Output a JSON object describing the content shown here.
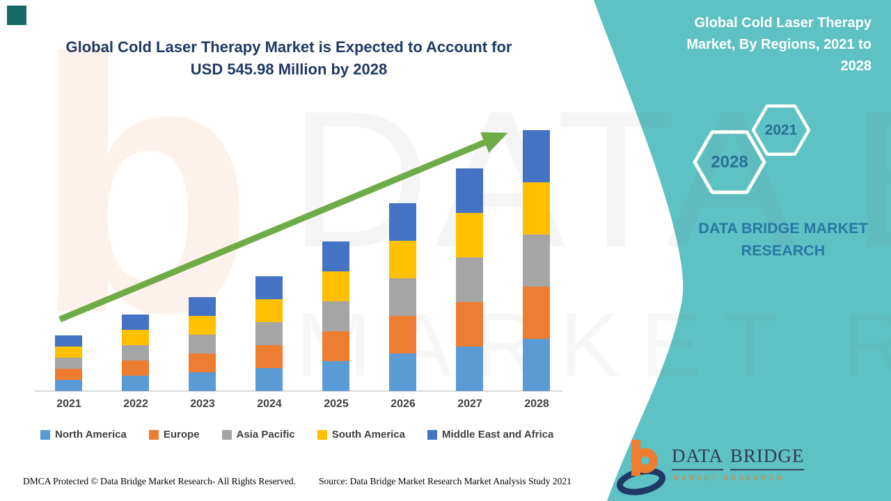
{
  "colors": {
    "teal_panel": "#5EC1C3",
    "title_navy": "#1F3864",
    "brand_blue": "#2878A4",
    "hex_year_blue": "#2B7095",
    "arrow_green": "#6FAC47",
    "axis_gray": "#D9D9D9",
    "label_gray": "#404040",
    "logo_orange": "#ED7D31",
    "logo_navy": "#203864",
    "corner_square": "#156A64"
  },
  "header": {
    "title": "Global Cold Laser Therapy Market is Expected to Account for USD 545.98 Million by 2028"
  },
  "side_panel": {
    "title": "Global Cold Laser Therapy Market, By Regions, 2021 to 2028",
    "hexagon_back_label": "2021",
    "hexagon_front_label": "2028",
    "brand_text": "DATA BRIDGE MARKET RESEARCH",
    "logo_name_word1": "DATA",
    "logo_name_word2": "BRIDGE",
    "logo_subtitle": "MARKET RESEARCH"
  },
  "watermarks": {
    "big_text": "DATA BRIDGE",
    "small_text": "MARKET RESEARCH",
    "letter_b": "b"
  },
  "chart_data": {
    "type": "bar",
    "stacked": true,
    "unit": "USD Million",
    "title": "Global Cold Laser Therapy Market, By Regions, 2021 to 2028",
    "categories": [
      "2021",
      "2022",
      "2023",
      "2024",
      "2025",
      "2026",
      "2027",
      "2028"
    ],
    "series": [
      {
        "name": "North America",
        "color": "#5B9BD5",
        "values": [
          23.9,
          31.7,
          39.9,
          47.5,
          62.9,
          78.0,
          93.8,
          109.2
        ]
      },
      {
        "name": "Europe",
        "color": "#ED7D31",
        "values": [
          23.9,
          31.7,
          39.9,
          47.5,
          62.9,
          78.0,
          93.8,
          109.2
        ]
      },
      {
        "name": "Asia Pacific",
        "color": "#A5A5A5",
        "values": [
          23.9,
          31.7,
          39.9,
          47.5,
          62.9,
          78.0,
          93.8,
          109.2
        ]
      },
      {
        "name": "South America",
        "color": "#FFC000",
        "values": [
          23.9,
          31.7,
          39.9,
          47.5,
          62.9,
          78.0,
          93.8,
          109.2
        ]
      },
      {
        "name": "Middle East and Africa",
        "color": "#4472C4",
        "values": [
          23.9,
          31.7,
          39.9,
          47.5,
          62.9,
          78.0,
          93.8,
          109.2
        ]
      }
    ],
    "totals": [
      119.5,
      158.5,
      199.5,
      237.5,
      314.5,
      390.0,
      469.0,
      546.0
    ],
    "final_total_label": "USD 545.98 Million by 2028",
    "ylim": [
      0,
      560
    ],
    "grid": false,
    "legend_position": "bottom",
    "trend_arrow": true
  },
  "footer": {
    "dmca": "DMCA Protected © Data Bridge Market Research- All Rights Reserved.",
    "source": "Source: Data Bridge Market Research Market Analysis Study 2021"
  }
}
